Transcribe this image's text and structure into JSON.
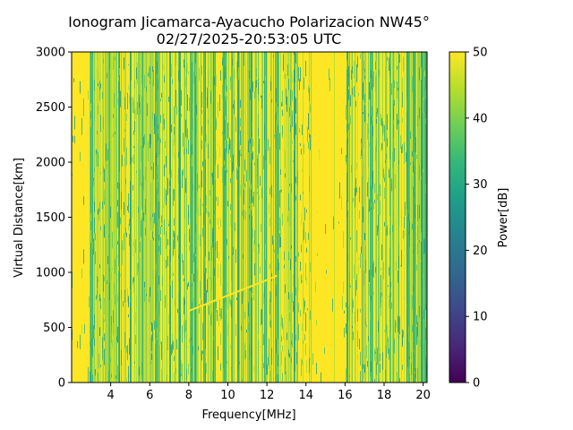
{
  "chart_data": {
    "type": "heatmap",
    "title": "Ionogram Jicamarca-Ayacucho Polarizacion NW45°",
    "subtitle": "02/27/2025-20:53:05 UTC",
    "xlabel": "Frequency[MHz]",
    "ylabel": "Virtual Distance[km]",
    "colorbar_label": "Power[dB]",
    "xlim": [
      2.0,
      20.2
    ],
    "ylim": [
      0,
      3000
    ],
    "clim": [
      0,
      50
    ],
    "colormap": "viridis",
    "x_ticks": [
      4,
      6,
      8,
      10,
      12,
      14,
      16,
      18,
      20
    ],
    "y_ticks": [
      0,
      500,
      1000,
      1500,
      2000,
      2500,
      3000
    ],
    "colorbar_ticks": [
      0,
      10,
      20,
      30,
      40,
      50
    ],
    "background_power_db": 50,
    "strong_interference_columns_mhz": [
      3.0,
      3.9,
      4.4,
      5.0,
      5.6,
      6.3,
      7.0,
      7.5,
      8.1,
      8.3,
      8.8,
      9.3,
      9.8,
      10.5,
      11.2,
      11.9,
      12.5,
      13.4,
      16.1,
      16.9,
      17.3,
      18.3,
      19.2,
      19.5,
      19.9,
      20.1
    ],
    "quiet_bands_mhz": [
      [
        2.0,
        2.9
      ],
      [
        14.2,
        16.0
      ]
    ],
    "echo_trace": [
      {
        "x": 8.0,
        "y": 650
      },
      {
        "x": 9.0,
        "y": 720
      },
      {
        "x": 10.0,
        "y": 790
      },
      {
        "x": 11.0,
        "y": 860
      },
      {
        "x": 12.0,
        "y": 930
      },
      {
        "x": 12.5,
        "y": 970
      }
    ]
  },
  "colors": {
    "viridis": [
      "#440154",
      "#482878",
      "#3e4989",
      "#31688e",
      "#26828e",
      "#1f9e89",
      "#35b779",
      "#6ece58",
      "#b5de2b",
      "#fde725"
    ]
  }
}
